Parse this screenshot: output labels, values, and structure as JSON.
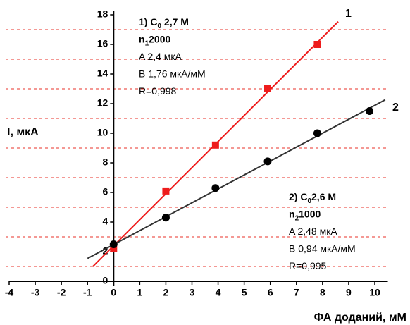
{
  "chart_data": {
    "type": "scatter",
    "y_label": "I, мкА",
    "x_label": "ФА доданий, мМ",
    "xlim": [
      -4,
      10.5
    ],
    "ylim": [
      0,
      18
    ],
    "xticks": [
      -4,
      -3,
      -2,
      -1,
      0,
      1,
      2,
      3,
      4,
      5,
      6,
      7,
      8,
      9,
      10
    ],
    "yticks": [
      0,
      2,
      4,
      6,
      8,
      10,
      12,
      14,
      16,
      18
    ],
    "grid_lines": [
      1,
      3,
      5,
      7,
      9,
      11,
      13,
      15,
      17
    ],
    "grid_color": "#e8302a",
    "series": [
      {
        "name": "1",
        "color": "#ee1c1c",
        "marker": "square",
        "x": [
          0,
          2,
          3.9,
          5.9,
          7.8
        ],
        "values": [
          2.2,
          6.1,
          9.2,
          13,
          16
        ],
        "fit": {
          "x": [
            -0.8,
            8.6
          ],
          "values": [
            0.99,
            17.54
          ]
        },
        "annotation": [
          {
            "pre": "1) C",
            "sub": "0",
            "post": " 2,7 M",
            "bold": true
          },
          {
            "pre": "n",
            "sub": "1",
            "post": "2000",
            "bold": true
          },
          {
            "pre": "A  2,4 мкА"
          },
          {
            "pre": "B  1,76 мкА/мМ"
          },
          {
            "pre": "R=0,998"
          }
        ]
      },
      {
        "name": "2",
        "color": "#333333",
        "marker": "circle",
        "x": [
          0,
          2,
          3.9,
          5.9,
          7.8,
          9.8
        ],
        "values": [
          2.5,
          4.3,
          6.3,
          8.1,
          10,
          11.5
        ],
        "fit": {
          "x": [
            -1,
            10.4
          ],
          "values": [
            1.54,
            12.26
          ]
        },
        "annotation": [
          {
            "pre": "2) C",
            "sub": "0",
            "post": "2,6 M",
            "bold": true
          },
          {
            "pre": "n",
            "sub": "2",
            "post": "1000",
            "bold": true
          },
          {
            "pre": "A  2,48 мкА"
          },
          {
            "pre": "B  0,94 мкА/мМ"
          },
          {
            "pre": "R=0,995"
          }
        ]
      }
    ]
  }
}
